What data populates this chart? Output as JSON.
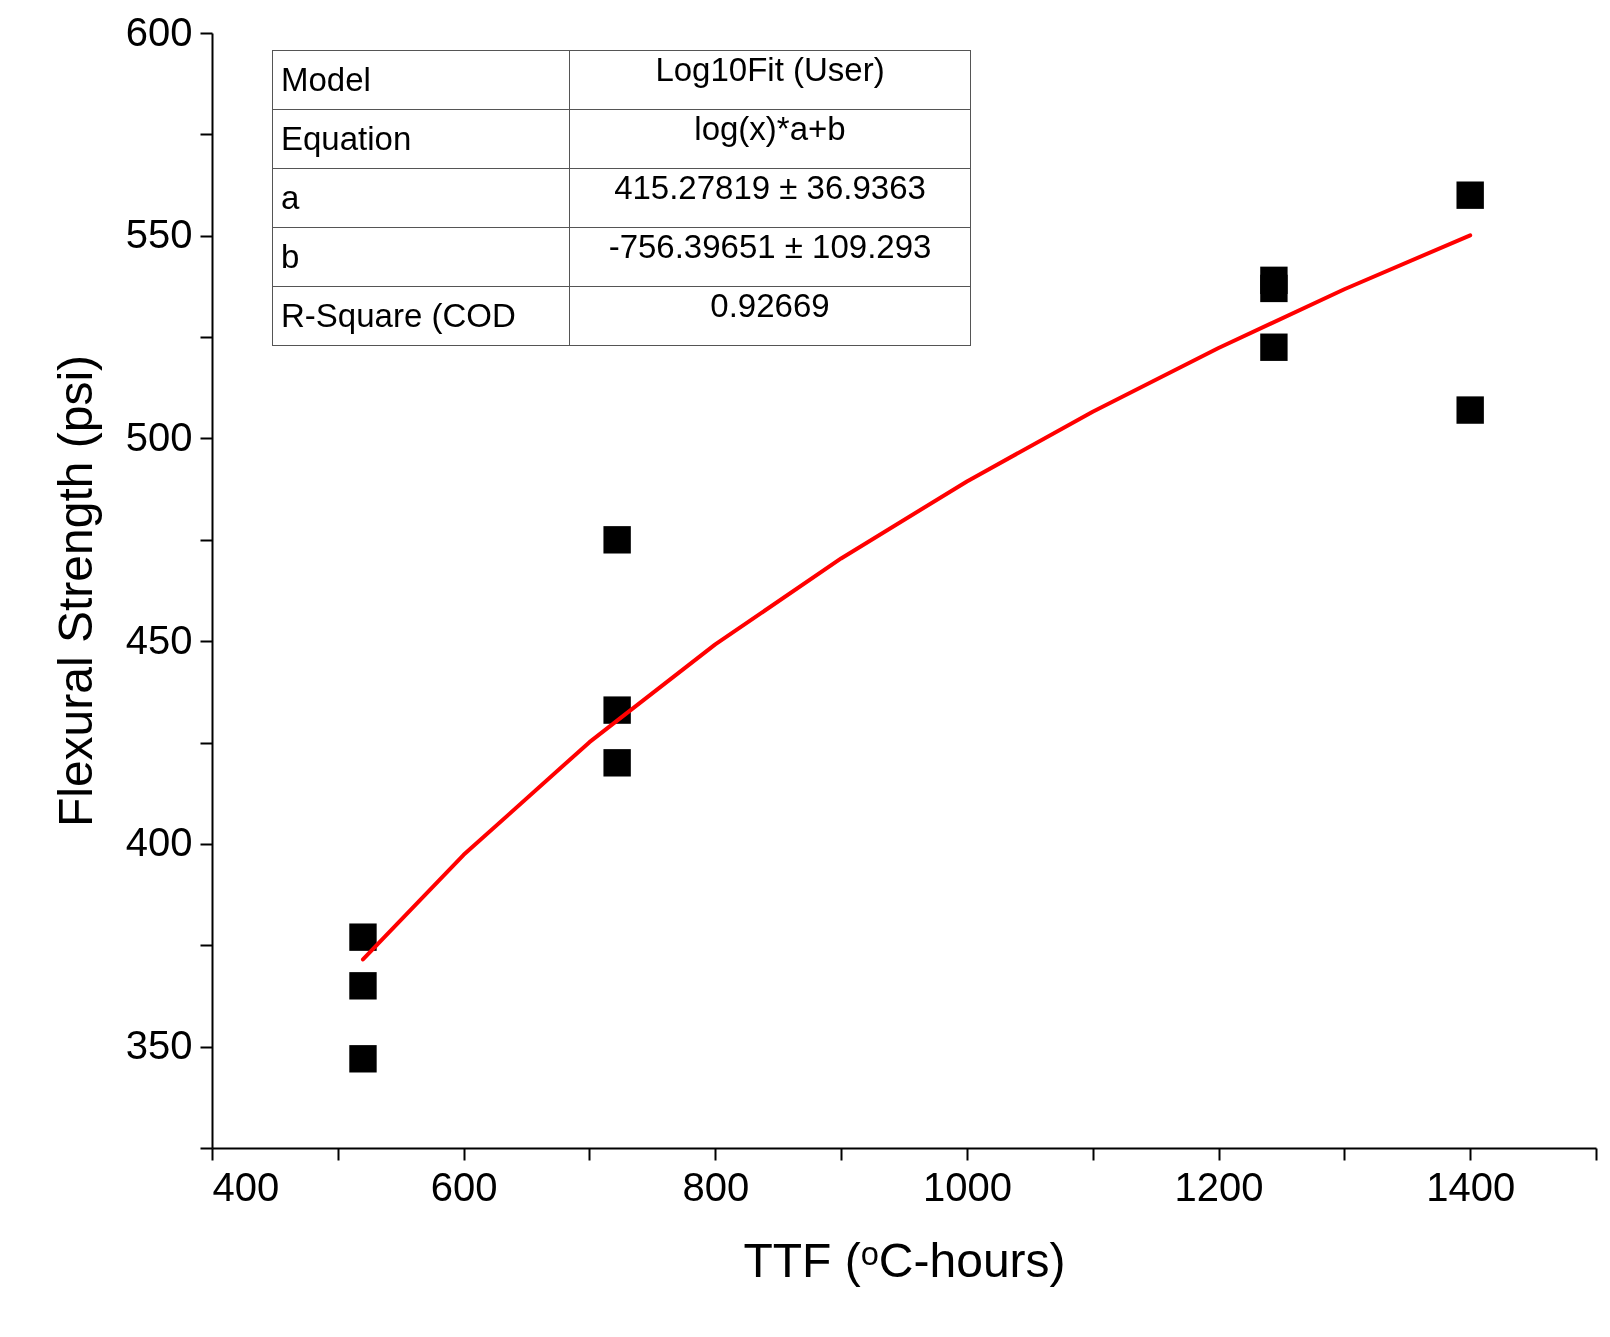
{
  "chart_data": {
    "type": "scatter",
    "xlabel": "TTF (ᵒC-hours)",
    "ylabel": "Flexural Strength (psi)",
    "xlim": [
      400,
      1500
    ],
    "xticks": [
      400,
      {
        "value": 500,
        "label": null
      },
      600,
      {
        "value": 700,
        "label": null
      },
      800,
      {
        "value": 900,
        "label": null
      },
      1000,
      {
        "value": 1100,
        "label": null
      },
      1200,
      {
        "value": 1300,
        "label": null
      },
      1400,
      {
        "value": 1500,
        "label": null
      }
    ],
    "ylim": [
      325,
      600
    ],
    "yticks": [
      {
        "value": 325,
        "label": null
      },
      350,
      {
        "value": 375,
        "label": null
      },
      400,
      {
        "value": 425,
        "label": null
      },
      450,
      {
        "value": 475,
        "label": null
      },
      500,
      {
        "value": 525,
        "label": null
      },
      550,
      {
        "value": 575,
        "label": null
      },
      600
    ],
    "grid": false,
    "series": [
      {
        "marker": "square",
        "color": "#000000",
        "x": [
          520,
          520,
          520,
          722,
          722,
          722,
          1244,
          1244,
          1244,
          1400,
          1400
        ],
        "values": [
          377,
          365,
          347,
          475,
          433,
          420,
          539,
          537,
          522.5,
          560,
          507
        ]
      },
      {
        "type": "line",
        "marker": "none",
        "color": "#ff0000",
        "x": [
          520,
          600,
          700,
          800,
          900,
          1000,
          1100,
          1200,
          1300,
          1400
        ],
        "values": [
          371.5,
          397.3,
          425.1,
          449.2,
          470.4,
          489.4,
          506.6,
          522.3,
          536.8,
          550.1
        ]
      }
    ],
    "annotations": [
      "Model",
      "Log10Fit (User)",
      "Equation",
      "log(x)*a+b",
      "a",
      "415.27819 ± 36.9363",
      "b",
      "-756.39651 ± 109.293",
      "R-Square (COD",
      "0.92669"
    ]
  }
}
